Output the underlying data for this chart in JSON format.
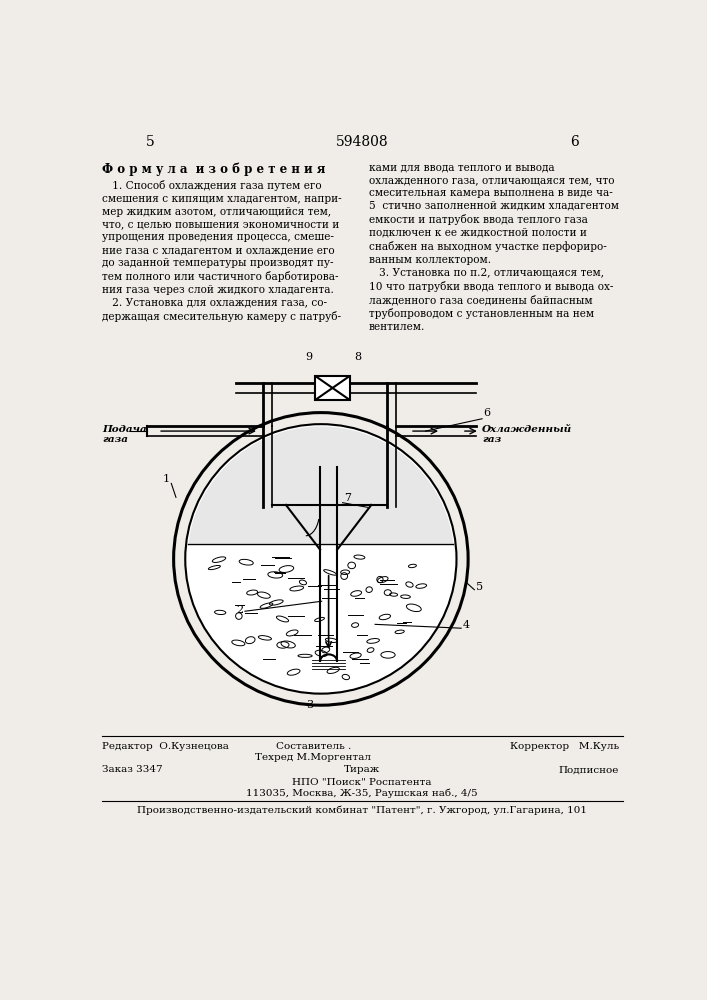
{
  "bg_color": "#f0ede8",
  "page_num_left": "5",
  "page_num_center": "594808",
  "page_num_right": "6",
  "title_formula": "Ф о р м у л а  и з о б р е т е н и я",
  "text_left": "   1. Способ охлаждения газа путем его\nсмешения с кипящим хладагентом, напри-\nмер жидким азотом, отличающийся тем,\nчто, с целью повышения экономичности и\nупрощения проведения процесса, смеше-\nние газа с хладагентом и охлаждение его\nдо заданной температуры производят пу-\nтем полного или частичного барботирова-\nния газа через слой жидкого хладагента.\n   2. Установка для охлаждения газа, со-\nдержащая смесительную камеру с патруб-",
  "text_right": "ками для ввода теплого и вывода\nохлажденного газа, отличающаяся тем, что\nсмесительная камера выполнена в виде ча-\n5  стично заполненной жидким хладагентом\nемкости и патрубок ввода теплого газа\nподключен к ее жидкостной полости и\nснабжен на выходном участке перфориро-\nванным коллектором.\n   3. Установка по п.2, отличающаяся тем,\n10 что патрубки ввода теплого и вывода ох-\nлажденного газа соединены байпасным\nтрубопроводом с установленным на нем\nвентилем.",
  "label_podacha": "Подача\nгаза",
  "label_ohlazhdenny": "Охлажденный\nгаз",
  "footer_line1_left": "Редактор  О.Кузнецова",
  "footer_line1_center": "Составитель .\nТехред М.Моргентал",
  "footer_line1_right": "Корректор   М.Куль",
  "footer_line2_left": "Заказ 3347",
  "footer_line2_center": "Тираж",
  "footer_line2_right": "Подписное",
  "footer_line3": "НПО \"Поиск\" Роспатента\n113035, Москва, Ж-35, Раушская наб., 4/5",
  "footer_line4": "Производственно-издательский комбинат \"Патент\", г. Ужгород, ул.Гагарина, 101"
}
